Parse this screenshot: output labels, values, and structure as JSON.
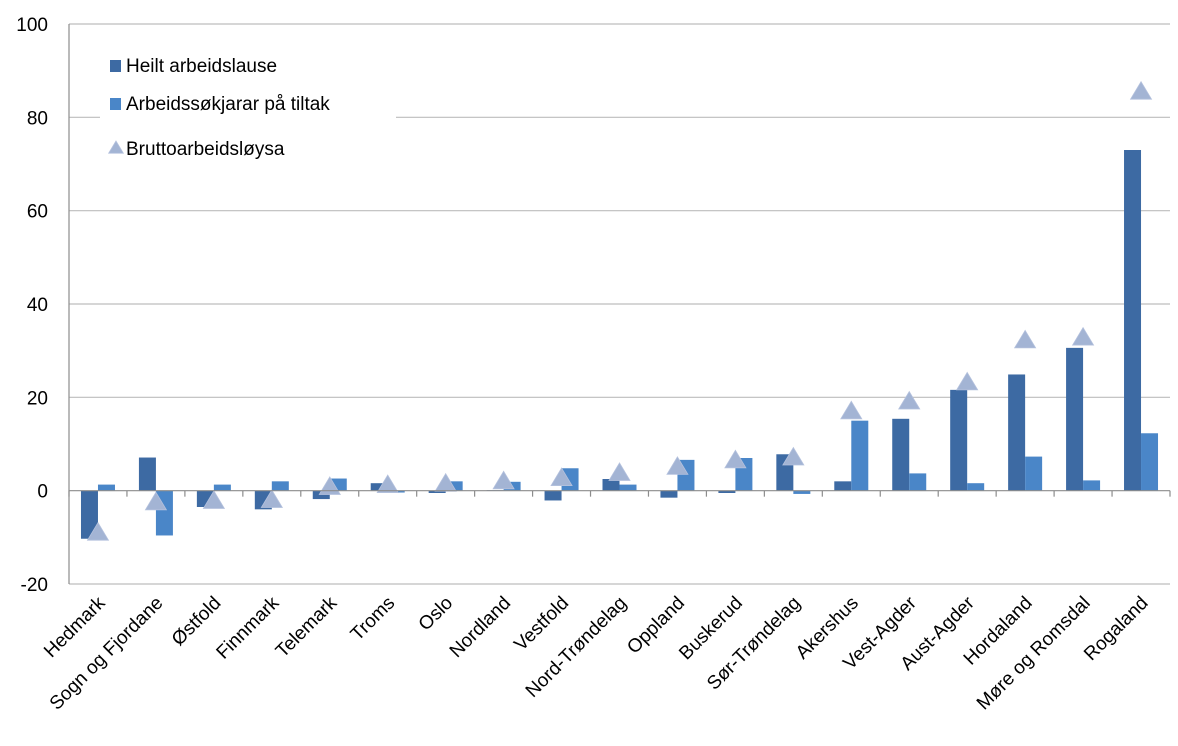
{
  "chart_data": {
    "type": "bar",
    "title": "",
    "xlabel": "",
    "ylabel": "",
    "ylim": [
      -20,
      100
    ],
    "yticks": [
      -20,
      0,
      20,
      40,
      60,
      80,
      100
    ],
    "grid": "horizontal",
    "legend_position": "top-left",
    "categories": [
      "Hedmark",
      "Sogn og Fjordane",
      "Østfold",
      "Finnmark",
      "Telemark",
      "Troms",
      "Oslo",
      "Nordland",
      "Vestfold",
      "Nord-Trøndelag",
      "Oppland",
      "Buskerud",
      "Sør-Trøndelag",
      "Akershus",
      "Vest-Agder",
      "Aust-Agder",
      "Hordaland",
      "Møre og Romsdal",
      "Rogaland"
    ],
    "series": [
      {
        "name": "Heilt arbeidslause",
        "kind": "bar",
        "color": "#3d6aa3",
        "values": [
          -10.3,
          7.1,
          -3.5,
          -4.0,
          -1.8,
          1.6,
          -0.5,
          0.1,
          -2.1,
          2.5,
          -1.5,
          -0.5,
          7.8,
          2.0,
          15.4,
          21.6,
          24.9,
          30.6,
          73.0
        ]
      },
      {
        "name": "Arbeidssøkjarar på tiltak",
        "kind": "bar",
        "color": "#4a86c8",
        "values": [
          1.3,
          -9.6,
          1.3,
          2.0,
          2.6,
          -0.4,
          2.0,
          1.9,
          4.8,
          1.3,
          6.6,
          7.0,
          -0.7,
          15.0,
          3.7,
          1.6,
          7.3,
          2.2,
          12.3
        ]
      },
      {
        "name": "Bruttoarbeidsløysa",
        "kind": "marker",
        "color": "#a3b4d4",
        "values": [
          -9.0,
          -2.5,
          -2.2,
          -2.0,
          0.8,
          1.2,
          1.5,
          2.0,
          2.7,
          3.8,
          5.1,
          6.5,
          7.1,
          17.0,
          19.1,
          23.2,
          32.2,
          32.8,
          85.5
        ]
      }
    ]
  }
}
